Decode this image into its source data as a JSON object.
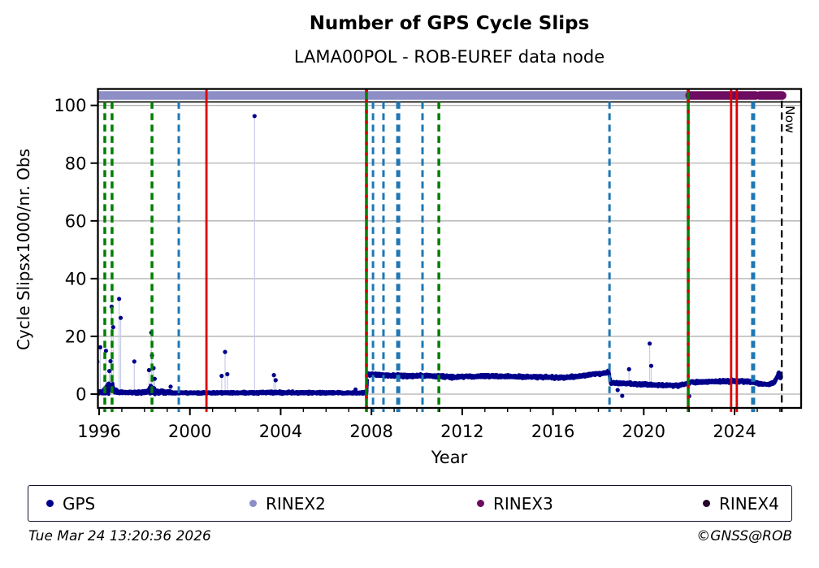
{
  "chart_data": {
    "type": "scatter",
    "title": "Number of GPS Cycle Slips",
    "subtitle": "LAMA00POL - ROB-EUREF data node",
    "xlabel": "Year",
    "ylabel": "Cycle Slipsx1000/nr. Obs",
    "xlim": [
      1995.95,
      2026.93
    ],
    "ylim": [
      -4.8,
      105.7
    ],
    "x_ticks": [
      1996,
      2000,
      2004,
      2008,
      2012,
      2016,
      2020,
      2024
    ],
    "y_ticks": [
      0,
      20,
      40,
      60,
      80,
      100
    ],
    "grid": "horizontal-gray",
    "top_rule_value": 101.2,
    "now_line": {
      "year": 2026.08,
      "label": "Now",
      "color": "#000000",
      "style": "dashed"
    },
    "band_value": 102.8,
    "bands": [
      {
        "name": "RINEX2",
        "color": "#8d8ec6",
        "segments": [
          [
            1995.98,
            2021.9
          ]
        ]
      },
      {
        "name": "RINEX3",
        "color": "#6d0c60",
        "segments": [
          [
            2022.02,
            2024.93
          ],
          [
            2025.11,
            2026.1
          ]
        ]
      },
      {
        "name": "RINEX4",
        "color": "#23082a",
        "segments": []
      }
    ],
    "event_colors": {
      "green": "#007f00",
      "blue": "#1f77b4",
      "red": "#dd0000",
      "black": "#000000"
    },
    "events": [
      {
        "year": 1996.25,
        "color": "green",
        "style": "dashed"
      },
      {
        "year": 1996.57,
        "color": "green",
        "style": "dashed"
      },
      {
        "year": 1998.33,
        "color": "green",
        "style": "dashed"
      },
      {
        "year": 1999.51,
        "color": "blue",
        "style": "dashed"
      },
      {
        "year": 2000.73,
        "color": "red",
        "style": "solid",
        "full": true
      },
      {
        "year": 2007.78,
        "color": "green",
        "style": "solid",
        "overlay": "red",
        "full": true
      },
      {
        "year": 2008.07,
        "color": "blue",
        "style": "dashed"
      },
      {
        "year": 2008.53,
        "color": "blue",
        "style": "dashed"
      },
      {
        "year": 2009.18,
        "color": "blue",
        "style": "dashed",
        "thick": true
      },
      {
        "year": 2010.25,
        "color": "blue",
        "style": "dashed"
      },
      {
        "year": 2010.97,
        "color": "green",
        "style": "dashed"
      },
      {
        "year": 2018.49,
        "color": "blue",
        "style": "dashed"
      },
      {
        "year": 2021.96,
        "color": "green",
        "style": "solid",
        "overlay": "red",
        "full": true
      },
      {
        "year": 2023.85,
        "color": "red",
        "style": "solid",
        "full": true
      },
      {
        "year": 2024.1,
        "color": "red",
        "style": "solid",
        "full": true
      },
      {
        "year": 2024.82,
        "color": "blue",
        "style": "dashed",
        "thick": true
      },
      {
        "year": 2026.08,
        "color": "black",
        "style": "dashed",
        "now": true
      }
    ],
    "gps_series": {
      "name": "GPS",
      "marker_color": "#00008b",
      "stem_color": "#c9cde9",
      "sample_step": 0.004,
      "baseline_anchors": [
        [
          1995.92,
          0.45,
          0.5
        ],
        [
          1996.2,
          0.8,
          0.9
        ],
        [
          1996.35,
          2.0,
          2.1
        ],
        [
          1996.5,
          2.4,
          2.4
        ],
        [
          1996.65,
          1.4,
          1.4
        ],
        [
          1996.85,
          0.6,
          0.6
        ],
        [
          1997.3,
          0.5,
          0.5
        ],
        [
          1998.1,
          0.7,
          0.8
        ],
        [
          1998.3,
          1.6,
          1.8
        ],
        [
          1998.5,
          0.8,
          0.9
        ],
        [
          1999.0,
          0.6,
          0.7
        ],
        [
          1999.4,
          0.4,
          0.45
        ],
        [
          2002.9,
          0.45,
          0.5
        ],
        [
          2003.3,
          0.55,
          0.6
        ],
        [
          2007.5,
          0.4,
          0.45
        ],
        [
          2007.79,
          0.45,
          0.5
        ],
        [
          2007.83,
          6.9,
          0.6
        ],
        [
          2008.5,
          6.6,
          0.65
        ],
        [
          2009.5,
          6.3,
          0.7
        ],
        [
          2010.5,
          6.35,
          0.6
        ],
        [
          2011.5,
          5.9,
          0.7
        ],
        [
          2012.5,
          6.1,
          0.65
        ],
        [
          2013.5,
          6.25,
          0.6
        ],
        [
          2014.5,
          6.0,
          0.65
        ],
        [
          2015.5,
          5.9,
          0.6
        ],
        [
          2016.5,
          5.7,
          0.7
        ],
        [
          2017.2,
          6.3,
          0.6
        ],
        [
          2017.8,
          6.9,
          0.65
        ],
        [
          2018.3,
          7.3,
          0.7
        ],
        [
          2018.46,
          7.8,
          0.6
        ],
        [
          2018.54,
          3.9,
          0.65
        ],
        [
          2019.5,
          3.5,
          0.65
        ],
        [
          2020.5,
          3.2,
          0.6
        ],
        [
          2021.5,
          2.9,
          0.6
        ],
        [
          2022.1,
          4.1,
          0.65
        ],
        [
          2023.0,
          4.3,
          0.6
        ],
        [
          2024.0,
          4.5,
          0.7
        ],
        [
          2024.7,
          4.3,
          0.7
        ],
        [
          2025.1,
          3.6,
          0.55
        ],
        [
          2025.5,
          3.3,
          0.5
        ],
        [
          2025.75,
          4.0,
          0.6
        ],
        [
          2025.95,
          7.0,
          1.3
        ],
        [
          2026.06,
          5.5,
          0.9
        ]
      ],
      "outliers": [
        [
          1995.92,
          11.2
        ],
        [
          1996.05,
          16.2
        ],
        [
          1996.3,
          15.0
        ],
        [
          1996.45,
          8.0
        ],
        [
          1996.5,
          11.4
        ],
        [
          1996.55,
          30.3
        ],
        [
          1996.62,
          23.2
        ],
        [
          1996.88,
          33.0
        ],
        [
          1996.95,
          26.4
        ],
        [
          1997.55,
          11.3
        ],
        [
          1998.2,
          8.3
        ],
        [
          1998.3,
          21.3
        ],
        [
          1998.33,
          13.4
        ],
        [
          1998.4,
          9.0
        ],
        [
          1998.45,
          5.3
        ],
        [
          1999.15,
          2.6
        ],
        [
          2001.4,
          6.3
        ],
        [
          2001.55,
          14.6
        ],
        [
          2001.65,
          6.9
        ],
        [
          2002.85,
          96.3
        ],
        [
          2003.7,
          6.6
        ],
        [
          2003.78,
          4.8
        ],
        [
          2007.3,
          1.6
        ],
        [
          2018.85,
          1.4
        ],
        [
          2019.05,
          -0.6
        ],
        [
          2019.35,
          8.6
        ],
        [
          2020.26,
          17.5
        ],
        [
          2020.33,
          9.8
        ],
        [
          2022.0,
          -0.7
        ]
      ]
    }
  },
  "legend": {
    "items": [
      {
        "label": "GPS",
        "color": "#00008b"
      },
      {
        "label": "RINEX2",
        "color": "#8d8ec6"
      },
      {
        "label": "RINEX3",
        "color": "#6d0c60"
      },
      {
        "label": "RINEX4",
        "color": "#23082a"
      }
    ]
  },
  "footer": {
    "timestamp": "Tue Mar 24 13:20:36 2026",
    "copyright": "©GNSS@ROB"
  }
}
